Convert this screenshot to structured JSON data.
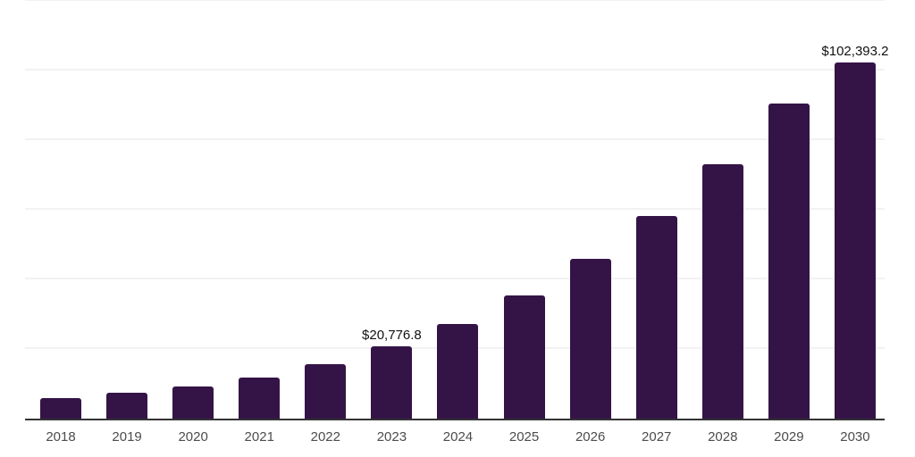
{
  "chart_data": {
    "type": "bar",
    "title": "",
    "xlabel": "",
    "ylabel": "",
    "categories": [
      "2018",
      "2019",
      "2020",
      "2021",
      "2022",
      "2023",
      "2024",
      "2025",
      "2026",
      "2027",
      "2028",
      "2029",
      "2030"
    ],
    "values": [
      6000,
      7500,
      9300,
      11800,
      15600,
      20776.8,
      27200,
      35500,
      45900,
      58100,
      73200,
      90600,
      102393.2
    ],
    "value_labels": {
      "2023": "$20,776.8",
      "2030": "$102,393.2"
    },
    "ylim": [
      0,
      120000
    ],
    "gridline_step": 20000,
    "grid": "horizontal",
    "legend_position": "none"
  },
  "colors": {
    "bar": "#341447",
    "axis_line": "#333333",
    "gridline": "#f2f2f2",
    "data_label_text": "#111111",
    "tick_label_text": "#4c4c4c",
    "background": "#ffffff"
  }
}
